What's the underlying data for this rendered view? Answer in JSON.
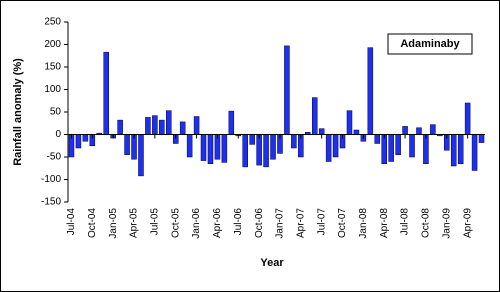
{
  "chart_data": {
    "type": "bar",
    "title": "Adaminaby",
    "x_label": "Year",
    "y_label": "Rainfall anomaly (%)",
    "categories": [
      "Jul-04",
      null,
      null,
      "Oct-04",
      null,
      null,
      "Jan-05",
      null,
      null,
      "Apr-05",
      null,
      null,
      "Jul-05",
      null,
      null,
      "Oct-05",
      null,
      null,
      "Jan-06",
      null,
      null,
      "Apr-06",
      null,
      null,
      "Jul-06",
      null,
      null,
      "Oct-06",
      null,
      null,
      "Jan-07",
      null,
      null,
      "Apr-07",
      null,
      null,
      "Jul-07",
      null,
      null,
      "Oct-07",
      null,
      null,
      "Jan-08",
      null,
      null,
      "Apr-08",
      null,
      null,
      "Jul-08",
      null,
      null,
      "Oct-08",
      null,
      null,
      "Jan-09",
      null,
      null,
      "Apr-09",
      null,
      null
    ],
    "values": [
      -50,
      -30,
      -15,
      -25,
      3,
      183,
      -8,
      32,
      -45,
      -55,
      -92,
      38,
      42,
      32,
      53,
      -20,
      28,
      -50,
      40,
      -58,
      -65,
      -55,
      -62,
      52,
      -3,
      -72,
      -22,
      -68,
      -72,
      -55,
      -42,
      197,
      -30,
      -50,
      5,
      82,
      13,
      -60,
      -50,
      -30,
      53,
      10,
      -15,
      193,
      -20,
      -65,
      -60,
      -45,
      18,
      -50,
      15,
      -65,
      22,
      -3,
      -35,
      -70,
      -65,
      70,
      -80,
      -18
    ],
    "color": "#1f2ff0",
    "ylim": [
      -150,
      250
    ],
    "yticks": [
      -150,
      -100,
      -50,
      0,
      50,
      100,
      150,
      200,
      250
    ]
  }
}
